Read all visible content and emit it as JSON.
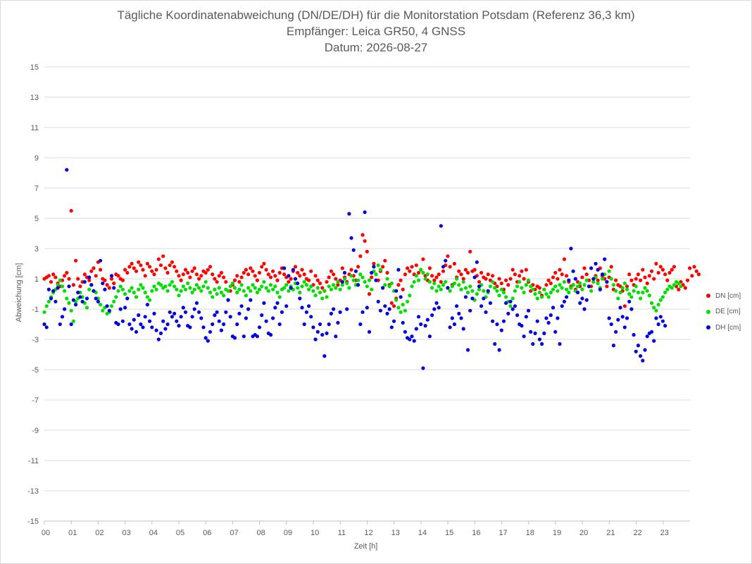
{
  "chart_data": {
    "type": "scatter",
    "title": "Tägliche Koordinatenabweichung (DN/DE/DH) für die Monitorstation Potsdam (Referenz 36,3 km)",
    "subtitle": "Empfänger: Leica GR50, 4 GNSS",
    "date_line": "Datum: 2026-08-27",
    "xlabel": "Zeit [h]",
    "ylabel": "Abweichung [cm]",
    "xlim": [
      0,
      24
    ],
    "ylim": [
      -15,
      15
    ],
    "x_ticks": [
      "00",
      "01",
      "02",
      "03",
      "04",
      "05",
      "06",
      "07",
      "08",
      "09",
      "10",
      "11",
      "12",
      "13",
      "14",
      "15",
      "16",
      "17",
      "18",
      "19",
      "20",
      "21",
      "22",
      "23"
    ],
    "y_ticks": [
      "15",
      "13",
      "11",
      "9",
      "7",
      "5",
      "3",
      "1",
      "-1",
      "-3",
      "-5",
      "-7",
      "-9",
      "-11",
      "-13",
      "-15"
    ],
    "grid": "horizontal",
    "legend_position": "right",
    "samples_per_series": 288,
    "x_step_h": 0.0833,
    "series": [
      {
        "name": "DN [cm]",
        "color": "#ff0000",
        "y": [
          1.0,
          1.1,
          1.2,
          0.8,
          1.3,
          1.1,
          0.7,
          0.5,
          0.9,
          1.2,
          1.4,
          1.0,
          5.5,
          0.6,
          2.2,
          1.0,
          0.5,
          0.8,
          1.3,
          1.1,
          0.9,
          1.5,
          1.7,
          1.2,
          2.1,
          1.6,
          1.0,
          0.9,
          0.6,
          0.4,
          1.0,
          0.7,
          1.3,
          1.2,
          1.0,
          0.9,
          1.6,
          1.4,
          1.8,
          2.0,
          1.7,
          1.5,
          2.1,
          1.9,
          1.6,
          1.2,
          2.0,
          1.8,
          1.5,
          1.3,
          1.6,
          2.3,
          1.9,
          2.5,
          1.7,
          1.4,
          1.9,
          2.1,
          1.8,
          1.5,
          1.2,
          0.9,
          1.3,
          1.6,
          1.4,
          1.1,
          1.5,
          1.7,
          1.3,
          1.0,
          1.2,
          1.5,
          1.4,
          1.6,
          1.8,
          1.3,
          1.0,
          0.8,
          1.2,
          1.4,
          1.1,
          0.8,
          -0.4,
          0.2,
          0.6,
          0.9,
          1.2,
          0.8,
          1.1,
          1.4,
          1.6,
          1.3,
          1.7,
          1.5,
          1.2,
          0.9,
          1.4,
          1.8,
          2.0,
          1.6,
          1.3,
          1.1,
          1.5,
          1.2,
          0.9,
          1.4,
          1.7,
          1.3,
          1.1,
          0.8,
          1.0,
          1.5,
          1.8,
          1.4,
          1.2,
          1.6,
          1.3,
          1.0,
          0.9,
          1.5,
          0.6,
          1.2,
          0.9,
          0.7,
          0.4,
          0.2,
          0.8,
          1.1,
          1.5,
          1.3,
          1.0,
          0.6,
          0.9,
          1.7,
          1.1,
          0.8,
          1.3,
          1.6,
          1.2,
          0.9,
          1.8,
          2.5,
          3.9,
          3.5,
          2.8,
          0.0,
          1.1,
          2.0,
          1.3,
          0.9,
          1.5,
          1.8,
          2.2,
          1.4,
          0.6,
          -0.6,
          -0.8,
          -0.3,
          0.6,
          0.9,
          0.3,
          1.3,
          1.7,
          1.5,
          1.8,
          1.3,
          1.9,
          1.4,
          1.6,
          2.3,
          1.2,
          0.9,
          1.7,
          1.2,
          0.9,
          1.1,
          1.3,
          0.8,
          1.5,
          1.9,
          2.5,
          1.8,
          0.6,
          2.0,
          1.1,
          1.5,
          1.3,
          1.0,
          1.6,
          1.4,
          2.8,
          1.5,
          1.6,
          1.2,
          0.8,
          1.4,
          1.1,
          1.0,
          1.3,
          0.9,
          1.2,
          0.7,
          0.5,
          1.0,
          0.7,
          0.3,
          0.9,
          0.6,
          1.0,
          1.6,
          1.3,
          0.8,
          1.2,
          1.5,
          1.0,
          1.6,
          0.8,
          0.2,
          0.6,
          0.3,
          0.5,
          0.4,
          -0.1,
          0.3,
          0.6,
          0.9,
          0.7,
          1.1,
          1.4,
          1.0,
          1.6,
          1.3,
          2.3,
          1.2,
          0.8,
          0.5,
          0.6,
          0.3,
          0.8,
          0.5,
          1.1,
          1.7,
          1.3,
          0.9,
          0.5,
          0.8,
          1.2,
          0.9,
          1.7,
          1.2,
          1.0,
          0.5,
          1.1,
          1.8,
          0.3,
          0.9,
          0.6,
          0.5,
          0.2,
          -0.8,
          0.5,
          1.3,
          0.9,
          0.6,
          1.0,
          1.3,
          0.9,
          1.6,
          1.1,
          0.7,
          1.2,
          1.5,
          1.0,
          2.0,
          1.4,
          1.8,
          1.6,
          1.3,
          0.9,
          1.4,
          1.6,
          1.8,
          0.5,
          0.3,
          0.8,
          0.6,
          0.4,
          0.9,
          1.7,
          1.2,
          1.8,
          1.5,
          1.3
        ]
      },
      {
        "name": "DE [cm]",
        "color": "#00e000",
        "y": [
          -1.2,
          -0.8,
          -0.5,
          -0.2,
          0.1,
          0.3,
          0.6,
          0.9,
          0.5,
          0.2,
          -0.3,
          -0.6,
          -1.1,
          -1.8,
          -0.5,
          -0.3,
          0.1,
          -0.2,
          -0.6,
          -0.9,
          0.3,
          0.6,
          0.2,
          0.1,
          -0.3,
          -0.7,
          -1.1,
          -0.9,
          -1.3,
          -1.2,
          -0.8,
          -0.5,
          -0.2,
          0.2,
          0.5,
          0.3,
          0.0,
          -0.3,
          0.2,
          0.4,
          0.1,
          -0.2,
          0.3,
          0.6,
          0.4,
          0.1,
          -0.2,
          -0.4,
          0.2,
          0.5,
          0.3,
          0.7,
          0.6,
          0.4,
          0.5,
          0.2,
          0.6,
          0.8,
          0.5,
          0.3,
          -0.1,
          0.2,
          0.5,
          0.3,
          0.7,
          0.4,
          0.1,
          0.3,
          0.6,
          0.4,
          0.2,
          0.5,
          0.8,
          0.4,
          0.1,
          -0.2,
          0.3,
          0.0,
          0.4,
          0.1,
          -0.1,
          0.3,
          0.2,
          0.5,
          0.7,
          0.4,
          0.1,
          0.3,
          0.6,
          0.2,
          -0.1,
          0.4,
          0.2,
          0.6,
          0.4,
          0.1,
          0.3,
          0.5,
          0.8,
          0.4,
          0.2,
          0.6,
          0.3,
          0.5,
          0.1,
          -0.2,
          0.3,
          0.4,
          0.6,
          0.2,
          0.5,
          0.3,
          0.7,
          0.4,
          0.1,
          0.5,
          0.8,
          0.6,
          0.3,
          0.5,
          0.2,
          -0.1,
          0.4,
          0.1,
          -0.3,
          0.2,
          -0.2,
          0.5,
          0.3,
          0.6,
          0.4,
          0.8,
          0.3,
          0.6,
          1.0,
          0.7,
          0.4,
          1.2,
          0.9,
          0.6,
          0.9,
          1.3,
          1.1,
          0.8,
          0.5,
          0.9,
          0.3,
          1.5,
          1.3,
          1.9,
          1.6,
          0.4,
          0.6,
          1.0,
          0.5,
          0.7,
          0.2,
          -0.4,
          -0.9,
          -1.2,
          -0.7,
          -1.1,
          -0.5,
          -0.1,
          0.5,
          0.8,
          1.2,
          0.9,
          1.6,
          1.4,
          1.0,
          1.3,
          0.8,
          0.4,
          0.7,
          0.2,
          0.5,
          0.3,
          0.6,
          0.8,
          0.4,
          0.2,
          0.5,
          0.7,
          1.0,
          0.6,
          0.3,
          0.8,
          0.4,
          0.1,
          0.5,
          0.2,
          -0.4,
          0.0,
          0.3,
          0.6,
          0.2,
          -0.2,
          0.1,
          0.5,
          0.8,
          0.4,
          0.2,
          -0.1,
          0.3,
          0.1,
          -0.2,
          -0.5,
          -0.8,
          -0.3,
          0.2,
          0.5,
          0.8,
          0.4,
          0.1,
          0.6,
          0.9,
          0.5,
          0.3,
          0.0,
          -0.3,
          0.1,
          -0.2,
          0.3,
          0.0,
          -0.2,
          0.1,
          0.3,
          0.5,
          0.2,
          0.6,
          0.4,
          0.8,
          0.3,
          0.1,
          0.4,
          0.6,
          0.2,
          0.5,
          0.7,
          0.3,
          0.6,
          0.9,
          0.5,
          0.2,
          0.8,
          1.1,
          0.7,
          0.4,
          1.0,
          1.3,
          0.8,
          1.5,
          1.0,
          0.6,
          0.2,
          -0.3,
          0.1,
          0.4,
          0.7,
          0.3,
          0.0,
          -0.2,
          0.2,
          0.5,
          0.1,
          -0.3,
          0.1,
          0.4,
          0.2,
          -0.1,
          -0.6,
          -0.9,
          -1.1,
          -0.7,
          -0.4,
          -0.2,
          0.1,
          0.3,
          0.5,
          0.4,
          0.6,
          0.8,
          0.7,
          0.5
        ]
      },
      {
        "name": "DH [cm]",
        "color": "#0000e0",
        "y": [
          -2.0,
          -2.2,
          0.3,
          -0.3,
          0.2,
          -0.5,
          0.4,
          -2.0,
          -1.5,
          -1.0,
          8.2,
          0.5,
          -2.0,
          -0.4,
          -0.7,
          0.1,
          -0.2,
          -0.5,
          0.8,
          -0.3,
          1.1,
          0.6,
          0.2,
          -0.3,
          -0.5,
          2.2,
          0.7,
          0.3,
          -0.8,
          -1.1,
          1.2,
          0.4,
          -1.9,
          -2.0,
          -1.0,
          -1.8,
          -0.9,
          -0.3,
          -2.0,
          -2.3,
          -1.7,
          -2.5,
          -1.4,
          -2.0,
          -2.2,
          -1.5,
          -0.7,
          -1.8,
          -2.2,
          -1.3,
          -2.4,
          -3.0,
          -2.6,
          -1.8,
          -2.3,
          -2.0,
          -1.2,
          -1.5,
          -1.3,
          -1.8,
          -2.1,
          -1.5,
          -0.9,
          -1.2,
          -2.1,
          -2.2,
          -1.5,
          -1.0,
          -0.6,
          -1.2,
          -1.6,
          -2.2,
          -2.9,
          -3.1,
          -2.5,
          -2.0,
          -1.4,
          -1.2,
          -1.8,
          -2.4,
          -2.0,
          -1.2,
          -0.4,
          -1.5,
          -2.8,
          -2.9,
          -2.0,
          -1.3,
          -0.8,
          -2.8,
          -1.6,
          -1.0,
          -0.4,
          -2.8,
          -2.7,
          -2.8,
          -2.2,
          -1.4,
          -0.6,
          -1.8,
          -2.6,
          -2.7,
          -1.6,
          -0.9,
          -0.6,
          -2.0,
          -1.2,
          1.7,
          -0.8,
          1.2,
          0.4,
          1.6,
          1.0,
          0.7,
          -0.3,
          -0.9,
          -2.0,
          -1.2,
          -0.8,
          -1.5,
          -2.2,
          -3.0,
          -2.5,
          -2.0,
          -2.7,
          -4.1,
          -2.6,
          -2.0,
          -1.3,
          -1.0,
          -2.8,
          -1.9,
          -1.2,
          0.8,
          1.4,
          -1.0,
          5.3,
          3.7,
          2.9,
          1.5,
          0.6,
          -2.0,
          -1.2,
          5.4,
          -0.9,
          -2.5,
          1.4,
          1.8,
          0.9,
          -0.5,
          -1.1,
          0.4,
          -0.8,
          -1.3,
          -1.0,
          -2.2,
          -1.8,
          0.2,
          1.6,
          -0.2,
          -1.9,
          -2.5,
          -2.9,
          -3.0,
          -2.8,
          -3.1,
          -2.3,
          -1.5,
          -2.0,
          -4.9,
          -2.1,
          -1.7,
          -2.8,
          -1.4,
          -1.0,
          -0.6,
          -0.9,
          4.5,
          1.8,
          2.2,
          0.4,
          -2.2,
          -1.6,
          -2.0,
          -0.8,
          -1.3,
          -1.6,
          -2.3,
          -0.2,
          -3.7,
          -1.1,
          -0.3,
          1.1,
          2.1,
          0.5,
          -0.8,
          -0.3,
          -1.2,
          0.2,
          -0.6,
          -1.8,
          -3.3,
          -2.0,
          -3.7,
          -2.4,
          -1.8,
          -0.6,
          -1.3,
          -0.5,
          -1.0,
          -0.8,
          -1.4,
          -2.0,
          -2.1,
          -2.8,
          -1.5,
          -1.1,
          -2.5,
          -3.3,
          -2.6,
          -1.8,
          -3.0,
          -3.3,
          -2.6,
          -1.6,
          -1.9,
          -1.4,
          -0.9,
          -2.5,
          -1.6,
          -3.3,
          -0.8,
          -0.5,
          -0.2,
          0.9,
          3.0,
          1.5,
          1.0,
          0.1,
          -0.6,
          -0.3,
          -1.0,
          -0.4,
          0.5,
          1.7,
          1.0,
          2.0,
          1.6,
          0.3,
          1.3,
          2.3,
          0.8,
          -1.6,
          -2.0,
          -3.4,
          -2.5,
          -1.7,
          -0.9,
          -1.5,
          -2.2,
          -1.6,
          -0.5,
          -1.0,
          -2.7,
          -3.8,
          -3.4,
          -4.1,
          -4.4,
          -3.7,
          -2.8,
          -2.6,
          -2.5,
          -3.1,
          -1.6,
          -2.0,
          -1.5,
          -1.8,
          -2.1
        ]
      }
    ]
  }
}
